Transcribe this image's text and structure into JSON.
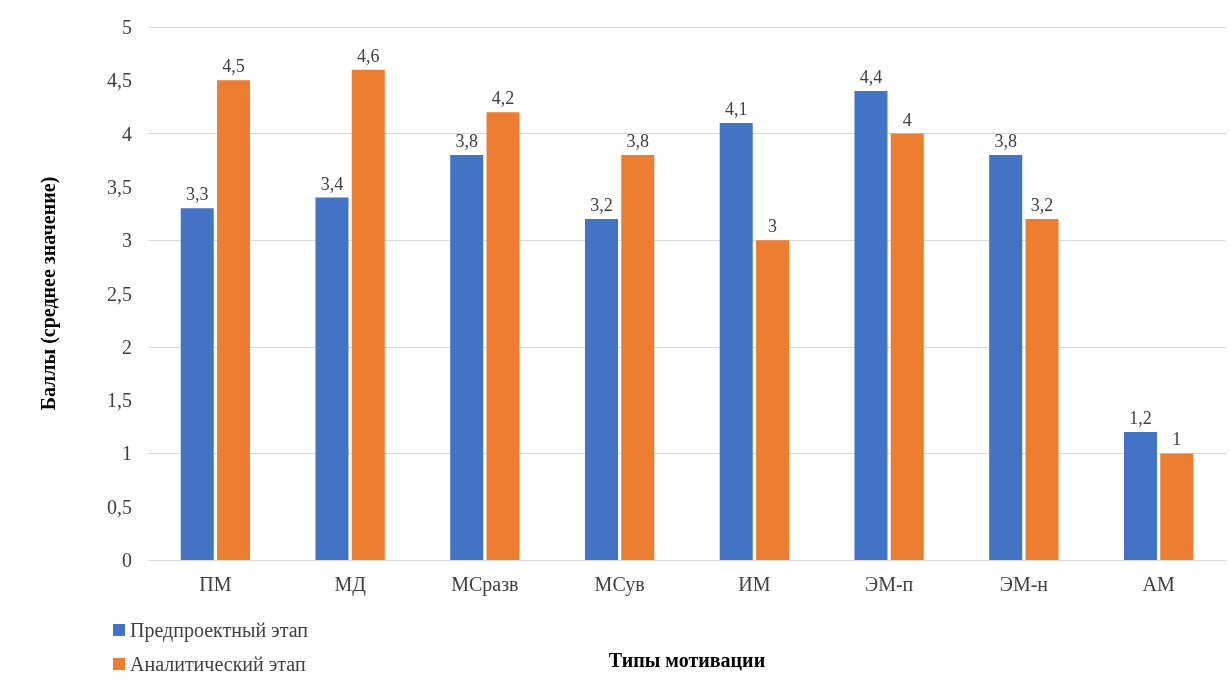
{
  "chart_data": {
    "type": "bar",
    "xlabel": "Типы мотивации",
    "ylabel": "Баллы (среднее значение)",
    "categories": [
      "ПМ",
      "МД",
      "МСразв",
      "МСув",
      "ИМ",
      "ЭМ-п",
      "ЭМ-н",
      "АМ"
    ],
    "series": [
      {
        "name": "Предпроектный этап",
        "color": "#4472c4",
        "values": [
          3.3,
          3.4,
          3.8,
          3.2,
          4.1,
          4.4,
          3.8,
          1.2
        ],
        "value_labels": [
          "3,3",
          "3,4",
          "3,8",
          "3,2",
          "4,1",
          "4,4",
          "3,8",
          "1,2"
        ]
      },
      {
        "name": "Аналитический этап",
        "color": "#ed7d31",
        "values": [
          4.5,
          4.6,
          4.2,
          3.8,
          3,
          4,
          3.2,
          1
        ],
        "value_labels": [
          "4,5",
          "4,6",
          "4,2",
          "3,8",
          "3",
          "4",
          "3,2",
          "1"
        ]
      }
    ],
    "ylim": [
      0,
      5
    ],
    "yticks": [
      0,
      {
        "value": 0.5,
        "label": "0,5"
      },
      1,
      {
        "value": 1.5,
        "label": "1,5"
      },
      2,
      {
        "value": 2.5,
        "label": "2,5"
      },
      3,
      {
        "value": 3.5,
        "label": "3,5"
      },
      4,
      {
        "value": 4.5,
        "label": "4,5"
      },
      5
    ],
    "grid": "y",
    "legend": "bottom left"
  }
}
